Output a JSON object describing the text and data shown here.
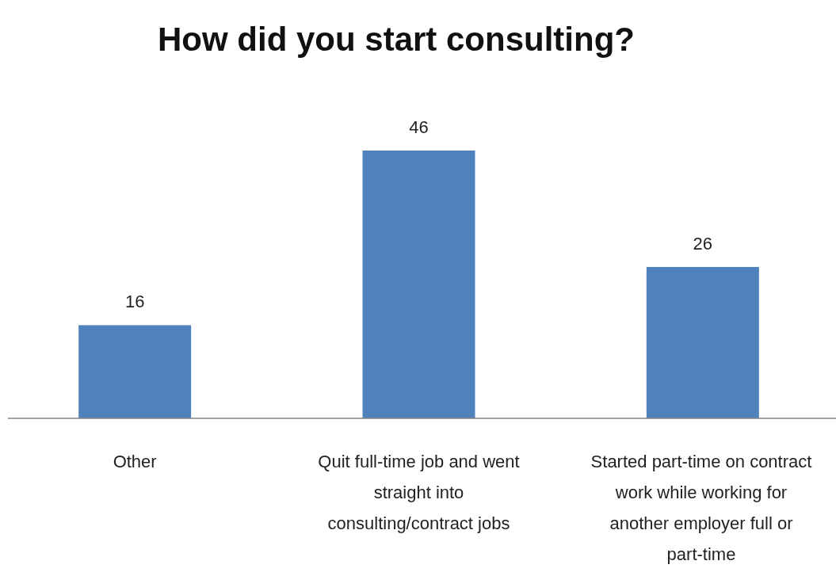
{
  "chart_data": {
    "type": "bar",
    "title": "How did you start consulting?",
    "categories": [
      "Other",
      "Quit full-time job and went straight into consulting/contract jobs",
      "Started part-time on contract work while working for another employer full or part-time"
    ],
    "values": [
      16,
      46,
      26
    ],
    "color": "#4f81bd",
    "data_labels": true
  }
}
